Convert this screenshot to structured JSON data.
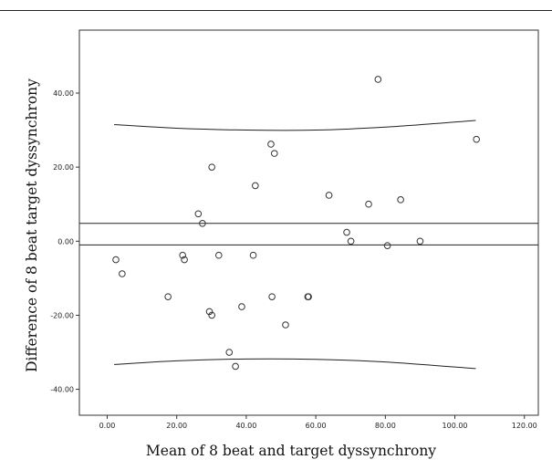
{
  "chart_data": {
    "type": "scatter",
    "title": "",
    "xlabel": "Mean of 8 beat and target dyssynchrony",
    "ylabel": "Difference of 8 beat target dyssynchrony",
    "xlim": [
      -8,
      124
    ],
    "ylim": [
      -47,
      57
    ],
    "xticks": [
      0,
      20,
      40,
      60,
      80,
      100,
      120
    ],
    "yticks": [
      -40,
      -20,
      0,
      20,
      40
    ],
    "xtick_labels": [
      "0.00",
      "20.00",
      "40.00",
      "60.00",
      "80.00",
      "100.00",
      "120.00"
    ],
    "ytick_labels": [
      "-40.00",
      "-20.00",
      "0.00",
      "20.00",
      "40.00"
    ],
    "grid": false,
    "points": [
      {
        "x": 2.5,
        "y": -5
      },
      {
        "x": 4.3,
        "y": -8.8
      },
      {
        "x": 17.5,
        "y": -15
      },
      {
        "x": 21.7,
        "y": -3.8
      },
      {
        "x": 22.2,
        "y": -5
      },
      {
        "x": 26.2,
        "y": 7.4
      },
      {
        "x": 27.4,
        "y": 4.8
      },
      {
        "x": 29.4,
        "y": -19
      },
      {
        "x": 30.1,
        "y": -20
      },
      {
        "x": 30.1,
        "y": 20
      },
      {
        "x": 32.1,
        "y": -3.8
      },
      {
        "x": 35.1,
        "y": -30
      },
      {
        "x": 36.9,
        "y": -33.8
      },
      {
        "x": 38.7,
        "y": -17.7
      },
      {
        "x": 42.0,
        "y": -3.8
      },
      {
        "x": 42.6,
        "y": 15
      },
      {
        "x": 47.1,
        "y": 26.2
      },
      {
        "x": 47.4,
        "y": -15
      },
      {
        "x": 48.1,
        "y": 23.7
      },
      {
        "x": 51.3,
        "y": -22.6
      },
      {
        "x": 57.7,
        "y": -15
      },
      {
        "x": 57.9,
        "y": -15
      },
      {
        "x": 63.8,
        "y": 12.4
      },
      {
        "x": 68.9,
        "y": 2.4
      },
      {
        "x": 70.1,
        "y": 0
      },
      {
        "x": 75.2,
        "y": 10
      },
      {
        "x": 77.9,
        "y": 43.7
      },
      {
        "x": 80.6,
        "y": -1.2
      },
      {
        "x": 84.4,
        "y": 11.2
      },
      {
        "x": 90.0,
        "y": 0
      },
      {
        "x": 106.2,
        "y": 27.5
      }
    ],
    "reference_lines": [
      {
        "name": "mean difference",
        "y": 4.8
      },
      {
        "name": "zero",
        "y": -1
      }
    ],
    "limit_curves": [
      {
        "name": "upper",
        "x": [
          2,
          20,
          40,
          60,
          80,
          106
        ],
        "y": [
          31.5,
          30.5,
          30.0,
          30.0,
          30.8,
          32.6
        ]
      },
      {
        "name": "lower",
        "x": [
          2,
          20,
          40,
          60,
          80,
          106
        ],
        "y": [
          -33.3,
          -32.3,
          -31.8,
          -31.9,
          -32.6,
          -34.4
        ]
      }
    ]
  }
}
